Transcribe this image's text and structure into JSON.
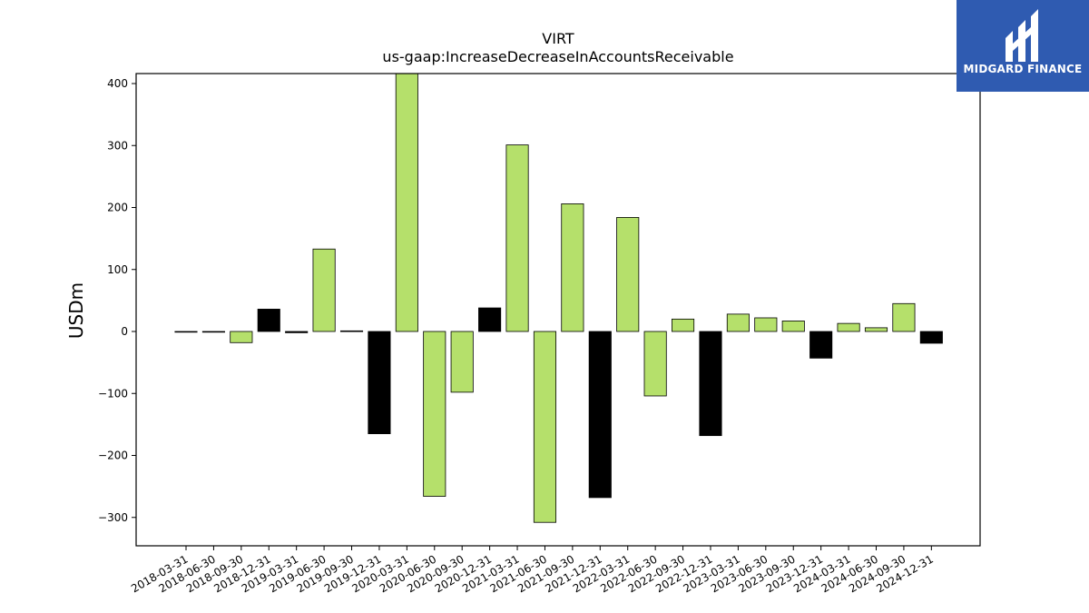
{
  "chart_data": {
    "type": "bar",
    "title": "VIRT",
    "subtitle": "us-gaap:IncreaseDecreaseInAccountsReceivable",
    "xlabel": "",
    "ylabel": "USDm",
    "ylim": [
      -345,
      415
    ],
    "yticks": [
      -300,
      -200,
      -100,
      0,
      100,
      200,
      300,
      400
    ],
    "ytick_labels": [
      "−300",
      "−200",
      "−100",
      "0",
      "100",
      "200",
      "300",
      "400"
    ],
    "categories": [
      "2018-03-31",
      "2018-06-30",
      "2018-09-30",
      "2018-12-31",
      "2019-03-31",
      "2019-06-30",
      "2019-09-30",
      "2019-12-31",
      "2020-03-31",
      "2020-06-30",
      "2020-09-30",
      "2020-12-31",
      "2021-03-31",
      "2021-06-30",
      "2021-09-30",
      "2021-12-31",
      "2022-03-31",
      "2022-06-30",
      "2022-09-30",
      "2022-12-31",
      "2023-03-31",
      "2023-06-30",
      "2023-09-30",
      "2023-12-31",
      "2024-03-31",
      "2024-06-30",
      "2024-09-30",
      "2024-12-31"
    ],
    "values": [
      -1,
      -1,
      -18,
      36,
      -2,
      133,
      1,
      -165,
      440,
      -266,
      -98,
      38,
      301,
      -308,
      206,
      -268,
      184,
      -104,
      20,
      -168,
      28,
      22,
      17,
      -43,
      13,
      6,
      45,
      -19
    ],
    "colors": [
      "#b5e06b",
      "#b5e06b",
      "#b5e06b",
      "#000000",
      "#000000",
      "#b5e06b",
      "#000000",
      "#000000",
      "#b5e06b",
      "#b5e06b",
      "#b5e06b",
      "#000000",
      "#b5e06b",
      "#b5e06b",
      "#b5e06b",
      "#000000",
      "#b5e06b",
      "#b5e06b",
      "#b5e06b",
      "#000000",
      "#b5e06b",
      "#b5e06b",
      "#b5e06b",
      "#000000",
      "#b5e06b",
      "#b5e06b",
      "#b5e06b",
      "#000000"
    ],
    "grid": false,
    "legend": "none"
  },
  "logo": {
    "text": "MIDGARD FINANCE",
    "background": "#2f5bb1"
  }
}
